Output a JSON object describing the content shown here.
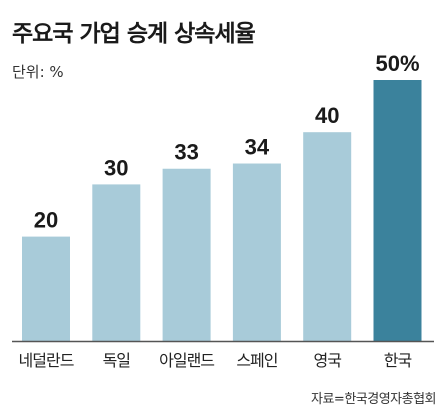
{
  "chart_data": {
    "type": "bar",
    "title": "주요국 가업 승계 상속세율",
    "unit_label": "단위: %",
    "categories": [
      "네덜란드",
      "독일",
      "아일랜드",
      "스페인",
      "영국",
      "한국"
    ],
    "values": [
      20,
      30,
      33,
      34,
      40,
      50
    ],
    "value_labels": [
      "20",
      "30",
      "33",
      "34",
      "40",
      "50%"
    ],
    "ylim": [
      0,
      50
    ],
    "grid": false,
    "colors": {
      "default_bar": "#a8cbd9",
      "highlight_bar": "#3b829c",
      "axis": "#555555"
    },
    "highlight_index": 5,
    "source": "자료=한국경영자총협회"
  }
}
